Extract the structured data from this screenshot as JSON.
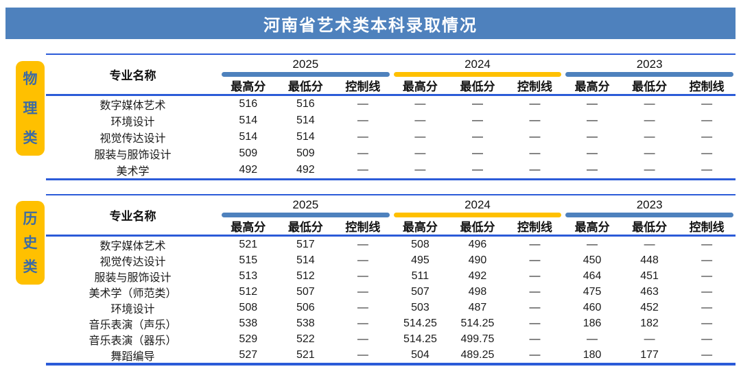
{
  "title": "河南省艺术类本科录取情况",
  "colors": {
    "banner_blue": "#4E81BD",
    "bar_blue": "#4E81BD",
    "bar_yellow": "#FFC000",
    "line_blue": "#2B5BD8",
    "category_bg": "#FFC000",
    "category_text": "#3D6BA4"
  },
  "columns": {
    "major": "专业名称",
    "years": [
      "2025",
      "2024",
      "2023"
    ],
    "subheaders": [
      "最高分",
      "最低分",
      "控制线"
    ]
  },
  "tables": [
    {
      "category": "物理类",
      "category_chars": {
        "c0": "物",
        "c1": "理",
        "c2": "类"
      },
      "rows": [
        {
          "name": "数字媒体艺术",
          "values": [
            "516",
            "516",
            "—",
            "—",
            "—",
            "—",
            "—",
            "—",
            "—"
          ]
        },
        {
          "name": "环境设计",
          "values": [
            "514",
            "514",
            "—",
            "—",
            "—",
            "—",
            "—",
            "—",
            "—"
          ]
        },
        {
          "name": "视觉传达设计",
          "values": [
            "514",
            "514",
            "—",
            "—",
            "—",
            "—",
            "—",
            "—",
            "—"
          ]
        },
        {
          "name": "服装与服饰设计",
          "values": [
            "509",
            "509",
            "—",
            "—",
            "—",
            "—",
            "—",
            "—",
            "—"
          ]
        },
        {
          "name": "美术学",
          "values": [
            "492",
            "492",
            "—",
            "—",
            "—",
            "—",
            "—",
            "—",
            "—"
          ]
        }
      ]
    },
    {
      "category": "历史类",
      "category_chars": {
        "c0": "历",
        "c1": "史",
        "c2": "类"
      },
      "rows": [
        {
          "name": "数字媒体艺术",
          "values": [
            "521",
            "517",
            "—",
            "508",
            "496",
            "—",
            "—",
            "—",
            "—"
          ]
        },
        {
          "name": "视觉传达设计",
          "values": [
            "515",
            "514",
            "—",
            "495",
            "490",
            "—",
            "450",
            "448",
            "—"
          ]
        },
        {
          "name": "服装与服饰设计",
          "values": [
            "513",
            "512",
            "—",
            "511",
            "492",
            "—",
            "464",
            "451",
            "—"
          ]
        },
        {
          "name": "美术学（师范类）",
          "values": [
            "512",
            "507",
            "—",
            "507",
            "498",
            "—",
            "475",
            "463",
            "—"
          ]
        },
        {
          "name": "环境设计",
          "values": [
            "508",
            "506",
            "—",
            "503",
            "487",
            "—",
            "460",
            "452",
            "—"
          ]
        },
        {
          "name": "音乐表演（声乐）",
          "values": [
            "538",
            "538",
            "—",
            "514.25",
            "514.25",
            "—",
            "186",
            "182",
            "—"
          ]
        },
        {
          "name": "音乐表演（器乐）",
          "values": [
            "529",
            "522",
            "—",
            "514.25",
            "499.75",
            "—",
            "—",
            "—",
            "—"
          ]
        },
        {
          "name": "舞蹈编导",
          "values": [
            "527",
            "521",
            "—",
            "504",
            "489.25",
            "—",
            "180",
            "177",
            "—"
          ]
        }
      ]
    }
  ]
}
